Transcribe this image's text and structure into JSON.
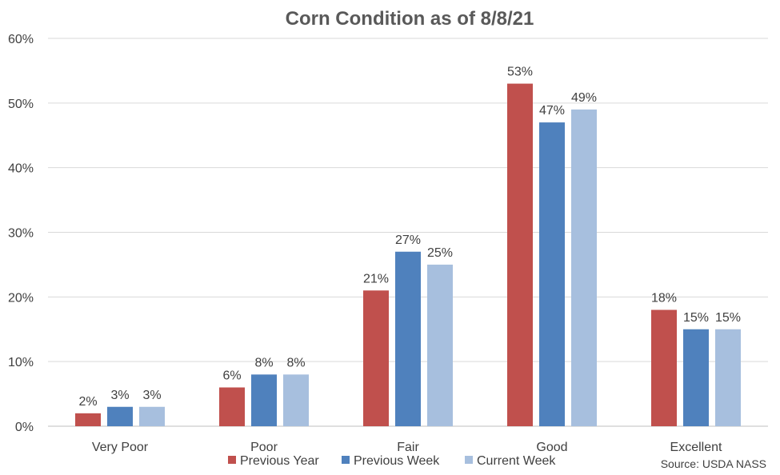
{
  "chart_data": {
    "type": "bar",
    "title": "Corn Condition as of 8/8/21",
    "categories": [
      "Very Poor",
      "Poor",
      "Fair",
      "Good",
      "Excellent"
    ],
    "series": [
      {
        "name": "Previous Year",
        "color": "#c0504d",
        "values": [
          2,
          6,
          21,
          53,
          18
        ],
        "labels": [
          "2%",
          "6%",
          "21%",
          "53%",
          "18%"
        ]
      },
      {
        "name": "Previous Week",
        "color": "#4f81bd",
        "values": [
          3,
          8,
          27,
          47,
          15
        ],
        "labels": [
          "3%",
          "8%",
          "27%",
          "47%",
          "15%"
        ]
      },
      {
        "name": "Current Week",
        "color": "#a7bfde",
        "values": [
          3,
          8,
          25,
          49,
          15
        ],
        "labels": [
          "3%",
          "8%",
          "25%",
          "49%",
          "15%"
        ]
      }
    ],
    "ylim": [
      0,
      60
    ],
    "yticks": [
      0,
      10,
      20,
      30,
      40,
      50,
      60
    ],
    "ytick_labels": [
      "0%",
      "10%",
      "20%",
      "30%",
      "40%",
      "50%",
      "60%"
    ],
    "grid": true,
    "legend_position": "bottom"
  },
  "source_note": "Source: USDA NASS"
}
